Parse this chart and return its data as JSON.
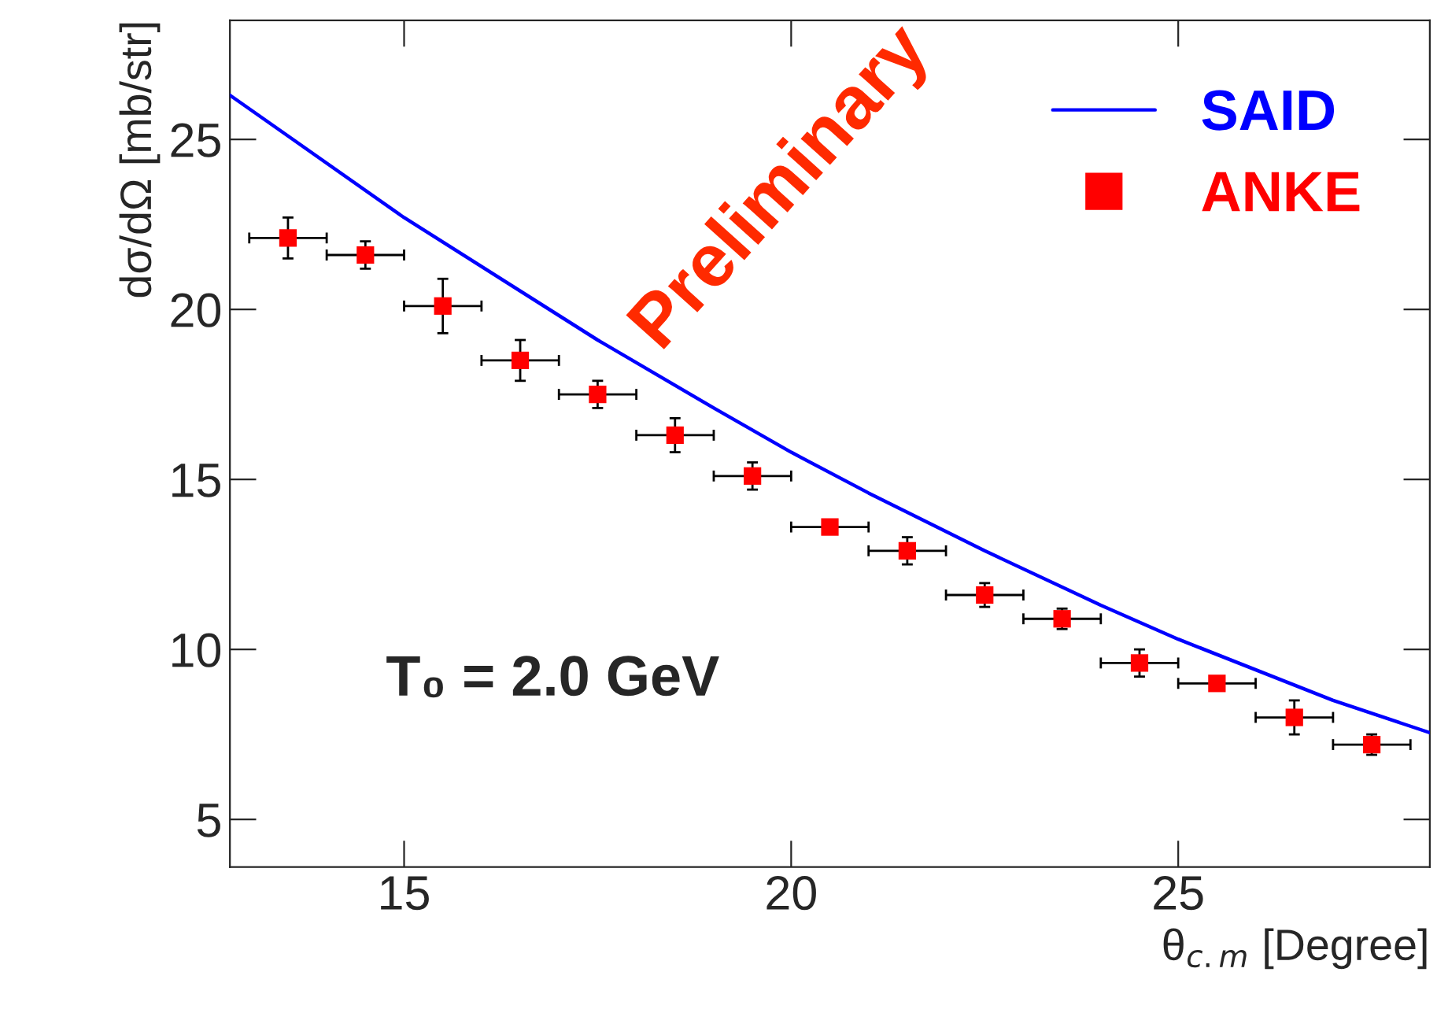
{
  "chart_data": {
    "type": "scatter",
    "xlabel": "θ$_{c.m}$ [Degree]",
    "ylabel": "dσ/dΩ [mb/str]",
    "xlim": [
      12.75,
      28.25
    ],
    "ylim": [
      3.6,
      28.5
    ],
    "xticks": [
      15,
      20,
      25
    ],
    "yticks": [
      5,
      10,
      15,
      20,
      25
    ],
    "grid": false,
    "legend": "top right",
    "series": [
      {
        "name": "SAID",
        "type": "line",
        "color": "#0000ff",
        "marker": "none",
        "line_style": "solid",
        "x": [
          12.75,
          13.5,
          15,
          17.5,
          19,
          20,
          21,
          22.5,
          24,
          25,
          27,
          28.25
        ],
        "values": [
          26.3,
          25.1,
          22.7,
          19.1,
          17.1,
          15.8,
          14.6,
          12.9,
          11.3,
          10.3,
          8.5,
          7.55
        ]
      },
      {
        "name": "ANKE",
        "type": "scatter",
        "color": "#ff0000",
        "marker": "square",
        "x": [
          13.5,
          14.5,
          15.5,
          16.5,
          17.5,
          18.5,
          19.5,
          20.5,
          21.5,
          22.5,
          23.5,
          24.5,
          25.5,
          26.5,
          27.5
        ],
        "values": [
          22.1,
          21.6,
          20.1,
          18.5,
          17.5,
          16.3,
          15.1,
          13.6,
          12.9,
          11.6,
          10.9,
          9.6,
          9.0,
          8.0,
          7.2
        ],
        "errors": [
          0.6,
          0.4,
          0.8,
          0.6,
          0.4,
          0.5,
          0.4,
          null,
          0.4,
          0.35,
          0.3,
          0.4,
          null,
          0.5,
          0.3
        ],
        "xerrors": [
          0.5,
          0.5,
          0.5,
          0.5,
          0.5,
          0.5,
          0.5,
          0.5,
          0.5,
          0.5,
          0.5,
          0.5,
          0.5,
          0.5,
          0.5
        ]
      }
    ],
    "annotations": [
      "T₀ = 2.0 GeV",
      "Preliminary"
    ]
  }
}
